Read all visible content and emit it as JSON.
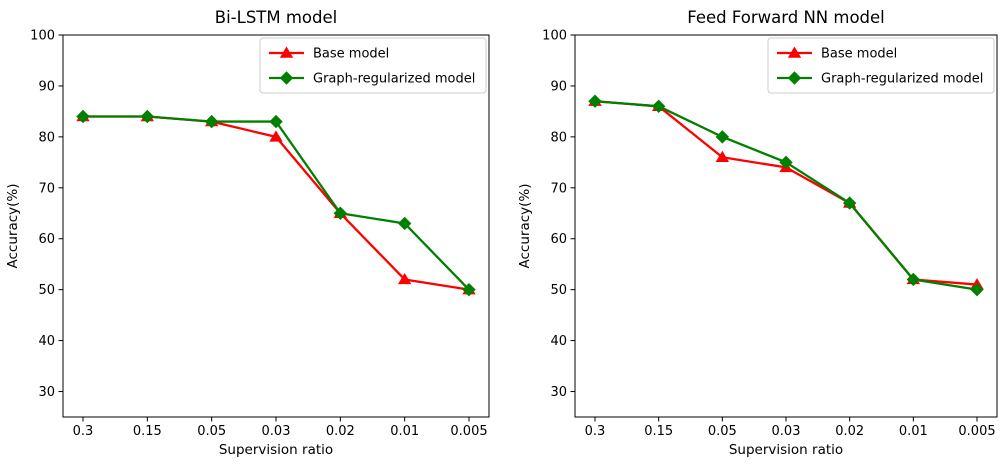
{
  "figure": {
    "background": "#ffffff",
    "text_color": "#000000",
    "axis_color": "#000000",
    "legend_border_color": "#cccccc",
    "legend_background": "#ffffff"
  },
  "chart_data": [
    {
      "type": "line",
      "title": "Bi-LSTM model",
      "xlabel": "Supervision ratio",
      "ylabel": "Accuracy(%)",
      "categories": [
        "0.3",
        "0.15",
        "0.05",
        "0.03",
        "0.02",
        "0.01",
        "0.005"
      ],
      "yticks": [
        100,
        90,
        80,
        70,
        60,
        50,
        40,
        30
      ],
      "ylim": [
        25,
        100
      ],
      "grid": false,
      "legend_position": "upper-right",
      "series": [
        {
          "name": "Base model",
          "color": "#ff0000",
          "marker": "triangle",
          "values": [
            84,
            84,
            83,
            80,
            65,
            52,
            50
          ]
        },
        {
          "name": "Graph-regularized model",
          "color": "#008000",
          "marker": "diamond",
          "values": [
            84,
            84,
            83,
            83,
            65,
            63,
            50
          ]
        }
      ]
    },
    {
      "type": "line",
      "title": "Feed Forward NN model",
      "xlabel": "Supervision ratio",
      "ylabel": "Accuracy(%)",
      "categories": [
        "0.3",
        "0.15",
        "0.05",
        "0.03",
        "0.02",
        "0.01",
        "0.005"
      ],
      "yticks": [
        100,
        90,
        80,
        70,
        60,
        50,
        40,
        30
      ],
      "ylim": [
        25,
        100
      ],
      "grid": false,
      "legend_position": "upper-right",
      "series": [
        {
          "name": "Base model",
          "color": "#ff0000",
          "marker": "triangle",
          "values": [
            87,
            86,
            76,
            74,
            67,
            52,
            51
          ]
        },
        {
          "name": "Graph-regularized model",
          "color": "#008000",
          "marker": "diamond",
          "values": [
            87,
            86,
            80,
            75,
            67,
            52,
            50
          ]
        }
      ]
    }
  ]
}
